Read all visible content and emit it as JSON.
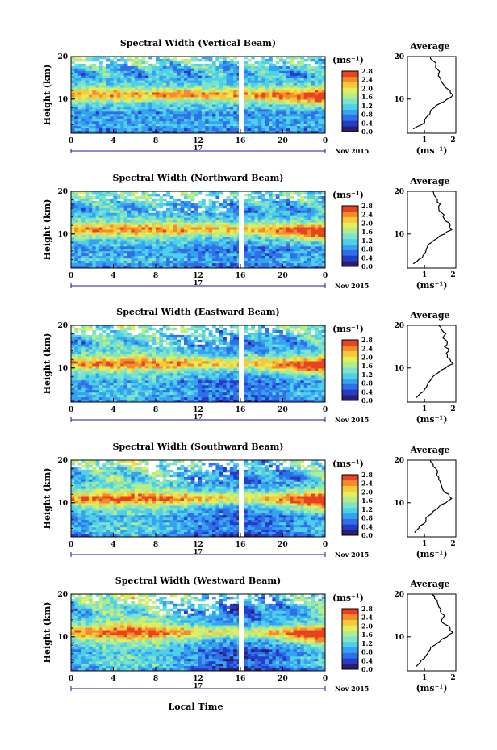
{
  "figure": {
    "xlabel": "Local Time",
    "date_label": "Nov 2015",
    "day_label": "17",
    "ylabel": "Height (km)",
    "cbar_unit": "(ms⁻¹)",
    "avg_title": "Average",
    "avg_xlabel": "(ms⁻¹)"
  },
  "colormap": [
    "#2b1e6e",
    "#243cc8",
    "#2f6fe8",
    "#35a3f0",
    "#4fd0e8",
    "#7fe3c8",
    "#b3ec8c",
    "#e4ee58",
    "#f7c83a",
    "#f78a2c",
    "#e8421f"
  ],
  "chart_data": [
    {
      "type": "heatmap",
      "title": "Spectral Width (Vertical Beam)",
      "xlabel": "Local Time",
      "ylabel": "Height (km)",
      "xticks": [
        "0",
        "4",
        "8",
        "12",
        "16",
        "20",
        "0"
      ],
      "yticks": [
        "20",
        "10"
      ],
      "xlim": [
        0,
        24
      ],
      "ylim": [
        2,
        20
      ],
      "colorbar": {
        "ticks": [
          "2.8",
          "2.4",
          "2.0",
          "1.6",
          "1.2",
          "0.8",
          "0.4",
          "0.0"
        ],
        "range": [
          0,
          2.8
        ]
      },
      "average_profile": {
        "x_ticks": [
          "1",
          "2"
        ],
        "xlim": [
          0.4,
          2.1
        ],
        "height": [
          3,
          4,
          5,
          6,
          7,
          8,
          9,
          10,
          11,
          12,
          13,
          14,
          15,
          16,
          17,
          18,
          19,
          20
        ],
        "width": [
          0.6,
          0.9,
          1.0,
          1.1,
          1.2,
          1.35,
          1.55,
          1.8,
          2.0,
          1.9,
          1.7,
          1.6,
          1.55,
          1.5,
          1.45,
          1.4,
          1.3,
          1.2
        ]
      }
    },
    {
      "type": "heatmap",
      "title": "Spectral Width (Northward Beam)",
      "xlabel": "Local Time",
      "ylabel": "Height (km)",
      "xticks": [
        "0",
        "4",
        "8",
        "12",
        "16",
        "20",
        "0"
      ],
      "yticks": [
        "20",
        "10"
      ],
      "xlim": [
        0,
        24
      ],
      "ylim": [
        2,
        20
      ],
      "colorbar": {
        "ticks": [
          "2.8",
          "2.4",
          "2.0",
          "1.6",
          "1.2",
          "0.8",
          "0.4",
          "0.0"
        ],
        "range": [
          0,
          2.8
        ]
      },
      "average_profile": {
        "x_ticks": [
          "1",
          "2"
        ],
        "xlim": [
          0.4,
          2.1
        ],
        "height": [
          3,
          4,
          5,
          6,
          7,
          8,
          9,
          10,
          11,
          12,
          13,
          14,
          15,
          16,
          17,
          18,
          19,
          20
        ],
        "width": [
          0.6,
          0.8,
          0.95,
          1.05,
          1.1,
          1.25,
          1.45,
          1.7,
          1.95,
          1.9,
          1.75,
          1.65,
          1.6,
          1.5,
          1.55,
          1.45,
          1.35,
          1.3
        ]
      }
    },
    {
      "type": "heatmap",
      "title": "Spectral Width (Eastward Beam)",
      "xlabel": "Local Time",
      "ylabel": "Height (km)",
      "xticks": [
        "0",
        "4",
        "8",
        "12",
        "16",
        "20",
        "0"
      ],
      "yticks": [
        "20",
        "10"
      ],
      "xlim": [
        0,
        24
      ],
      "ylim": [
        2,
        20
      ],
      "colorbar": {
        "ticks": [
          "2.8",
          "2.4",
          "2.0",
          "1.6",
          "1.2",
          "0.8",
          "0.4",
          "0.0"
        ],
        "range": [
          0,
          2.8
        ]
      },
      "average_profile": {
        "x_ticks": [
          "1",
          "2"
        ],
        "xlim": [
          0.4,
          2.1
        ],
        "height": [
          3,
          4,
          5,
          6,
          7,
          8,
          9,
          10,
          11,
          12,
          13,
          14,
          15,
          16,
          17,
          18,
          19,
          20
        ],
        "width": [
          0.7,
          0.85,
          1.0,
          1.1,
          1.2,
          1.3,
          1.5,
          1.75,
          2.0,
          1.9,
          1.8,
          1.85,
          1.7,
          1.8,
          1.65,
          1.75,
          1.6,
          1.5
        ]
      }
    },
    {
      "type": "heatmap",
      "title": "Spectral Width (Southward Beam)",
      "xlabel": "Local Time",
      "ylabel": "Height (km)",
      "xticks": [
        "0",
        "4",
        "8",
        "12",
        "16",
        "20",
        "0"
      ],
      "yticks": [
        "20",
        "10"
      ],
      "xlim": [
        0,
        24
      ],
      "ylim": [
        2,
        20
      ],
      "colorbar": {
        "ticks": [
          "2.8",
          "2.4",
          "2.0",
          "1.6",
          "1.2",
          "0.8",
          "0.4",
          "0.0"
        ],
        "range": [
          0,
          2.8
        ]
      },
      "average_profile": {
        "x_ticks": [
          "1",
          "2"
        ],
        "xlim": [
          0.4,
          2.1
        ],
        "height": [
          3,
          4,
          5,
          6,
          7,
          8,
          9,
          10,
          11,
          12,
          13,
          14,
          15,
          16,
          17,
          18,
          19,
          20
        ],
        "width": [
          0.65,
          0.8,
          0.95,
          1.05,
          1.15,
          1.3,
          1.5,
          1.75,
          1.95,
          1.85,
          1.65,
          1.6,
          1.55,
          1.5,
          1.45,
          1.4,
          1.3,
          1.2
        ]
      }
    },
    {
      "type": "heatmap",
      "title": "Spectral Width (Westward Beam)",
      "xlabel": "Local Time",
      "ylabel": "Height (km)",
      "xticks": [
        "0",
        "4",
        "8",
        "12",
        "16",
        "20",
        "0"
      ],
      "yticks": [
        "20",
        "10"
      ],
      "xlim": [
        0,
        24
      ],
      "ylim": [
        2,
        20
      ],
      "colorbar": {
        "ticks": [
          "2.8",
          "2.4",
          "2.0",
          "1.6",
          "1.2",
          "0.8",
          "0.4",
          "0.0"
        ],
        "range": [
          0,
          2.8
        ]
      },
      "average_profile": {
        "x_ticks": [
          "1",
          "2"
        ],
        "xlim": [
          0.4,
          2.1
        ],
        "height": [
          3,
          4,
          5,
          6,
          7,
          8,
          9,
          10,
          11,
          12,
          13,
          14,
          15,
          16,
          17,
          18,
          19,
          20
        ],
        "width": [
          0.7,
          0.85,
          1.0,
          1.1,
          1.2,
          1.35,
          1.55,
          1.8,
          2.0,
          1.9,
          1.7,
          1.6,
          1.7,
          1.55,
          1.5,
          1.45,
          1.35,
          1.25
        ]
      }
    }
  ]
}
